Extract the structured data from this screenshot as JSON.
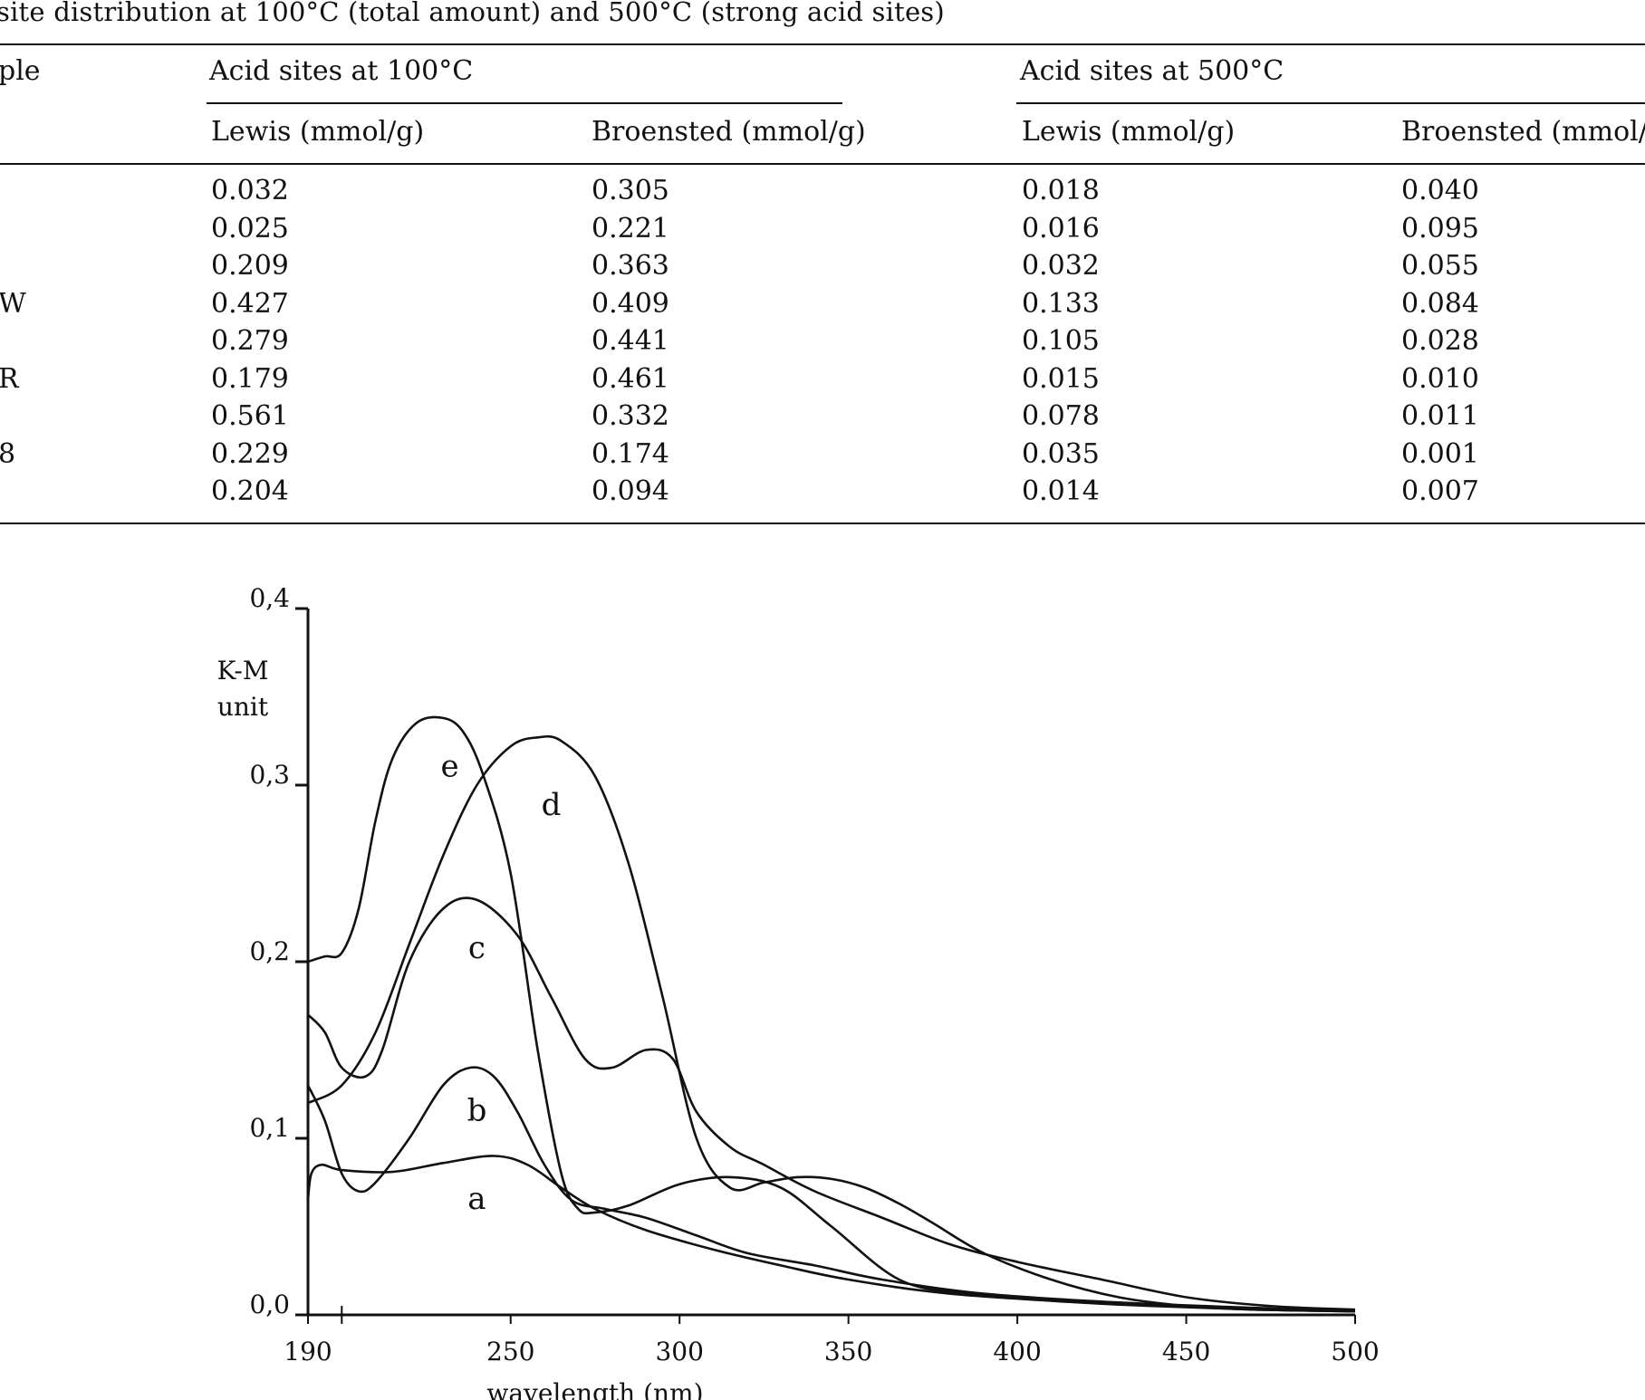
{
  "caption": "site distribution at 100°C (total amount) and 500°C (strong acid sites)",
  "table": {
    "header_col0": "ple",
    "group_100": "Acid sites at 100°C",
    "group_500": "Acid sites at 500°C",
    "sub_headers": [
      "Lewis (mmol/g)",
      "Broensted (mmol/g)",
      "Lewis (mmol/g)",
      "Broensted (mmol/g)"
    ],
    "rows": [
      {
        "label": "",
        "values": [
          "0.032",
          "0.305",
          "0.018",
          "0.040"
        ]
      },
      {
        "label": "",
        "values": [
          "0.025",
          "0.221",
          "0.016",
          "0.095"
        ]
      },
      {
        "label": "",
        "values": [
          "0.209",
          "0.363",
          "0.032",
          "0.055"
        ]
      },
      {
        "label": "W",
        "values": [
          "0.427",
          "0.409",
          "0.133",
          "0.084"
        ]
      },
      {
        "label": "",
        "values": [
          "0.279",
          "0.441",
          "0.105",
          "0.028"
        ]
      },
      {
        "label": "R",
        "values": [
          "0.179",
          "0.461",
          "0.015",
          "0.010"
        ]
      },
      {
        "label": "",
        "values": [
          "0.561",
          "0.332",
          "0.078",
          "0.011"
        ]
      },
      {
        "label": "8",
        "values": [
          "0.229",
          "0.174",
          "0.035",
          "0.001"
        ]
      },
      {
        "label": "",
        "values": [
          "0.204",
          "0.094",
          "0.014",
          "0.007"
        ]
      }
    ]
  },
  "chart_data": {
    "type": "line",
    "ylabel": "K-M unit",
    "xlabel": "wavelength (nm)",
    "x_ticks": [
      "190",
      "250",
      "300",
      "350",
      "400",
      "450",
      "500"
    ],
    "y_ticks": [
      "0,0",
      "0,1",
      "0,2",
      "0,3",
      "0,4"
    ],
    "xlim": [
      190,
      500
    ],
    "ylim": [
      0,
      0.4
    ],
    "grid": false,
    "series": [
      {
        "name": "a",
        "x": [
          190,
          191,
          194,
          200,
          215,
          230,
          245,
          255,
          265,
          275,
          290,
          310,
          330,
          350,
          380,
          420,
          460,
          500
        ],
        "y": [
          0.065,
          0.08,
          0.085,
          0.082,
          0.081,
          0.086,
          0.09,
          0.085,
          0.072,
          0.06,
          0.048,
          0.037,
          0.028,
          0.02,
          0.012,
          0.007,
          0.004,
          0.002
        ]
      },
      {
        "name": "b",
        "x": [
          190,
          195,
          200,
          205,
          210,
          220,
          230,
          238,
          245,
          252,
          260,
          268,
          278,
          290,
          305,
          320,
          340,
          360,
          390,
          430,
          470,
          500
        ],
        "y": [
          0.13,
          0.11,
          0.08,
          0.07,
          0.075,
          0.1,
          0.13,
          0.14,
          0.135,
          0.115,
          0.085,
          0.065,
          0.06,
          0.055,
          0.045,
          0.035,
          0.028,
          0.02,
          0.012,
          0.007,
          0.004,
          0.002
        ]
      },
      {
        "name": "c",
        "x": [
          190,
          195,
          200,
          207,
          212,
          220,
          230,
          240,
          252,
          262,
          272,
          280,
          290,
          298,
          305,
          315,
          325,
          340,
          360,
          380,
          400,
          425,
          450,
          475,
          500
        ],
        "y": [
          0.17,
          0.16,
          0.14,
          0.135,
          0.15,
          0.2,
          0.23,
          0.235,
          0.215,
          0.18,
          0.145,
          0.14,
          0.15,
          0.145,
          0.115,
          0.095,
          0.085,
          0.07,
          0.055,
          0.04,
          0.03,
          0.02,
          0.01,
          0.005,
          0.003
        ]
      },
      {
        "name": "d",
        "x": [
          190,
          200,
          210,
          220,
          230,
          240,
          250,
          258,
          265,
          275,
          285,
          295,
          305,
          315,
          325,
          335,
          345,
          355,
          365,
          375,
          390,
          410,
          430,
          450,
          470,
          500
        ],
        "y": [
          0.12,
          0.13,
          0.16,
          0.21,
          0.26,
          0.3,
          0.322,
          0.327,
          0.325,
          0.305,
          0.255,
          0.18,
          0.1,
          0.072,
          0.075,
          0.078,
          0.077,
          0.072,
          0.063,
          0.052,
          0.035,
          0.02,
          0.01,
          0.005,
          0.003,
          0.002
        ]
      },
      {
        "name": "e",
        "x": [
          190,
          195,
          200,
          205,
          210,
          215,
          222,
          230,
          236,
          242,
          250,
          258,
          265,
          270,
          275,
          285,
          300,
          315,
          330,
          345,
          365,
          385,
          410,
          440,
          470,
          500
        ],
        "y": [
          0.2,
          0.203,
          0.205,
          0.23,
          0.28,
          0.315,
          0.335,
          0.338,
          0.33,
          0.305,
          0.25,
          0.15,
          0.08,
          0.06,
          0.058,
          0.062,
          0.074,
          0.078,
          0.072,
          0.05,
          0.02,
          0.012,
          0.008,
          0.005,
          0.003,
          0.002
        ]
      }
    ],
    "curve_labels": [
      {
        "series": "e",
        "x": 232,
        "y": 0.305
      },
      {
        "series": "d",
        "x": 262,
        "y": 0.283
      },
      {
        "series": "c",
        "x": 240,
        "y": 0.202
      },
      {
        "series": "b",
        "x": 240,
        "y": 0.11
      },
      {
        "series": "a",
        "x": 240,
        "y": 0.06
      }
    ]
  }
}
